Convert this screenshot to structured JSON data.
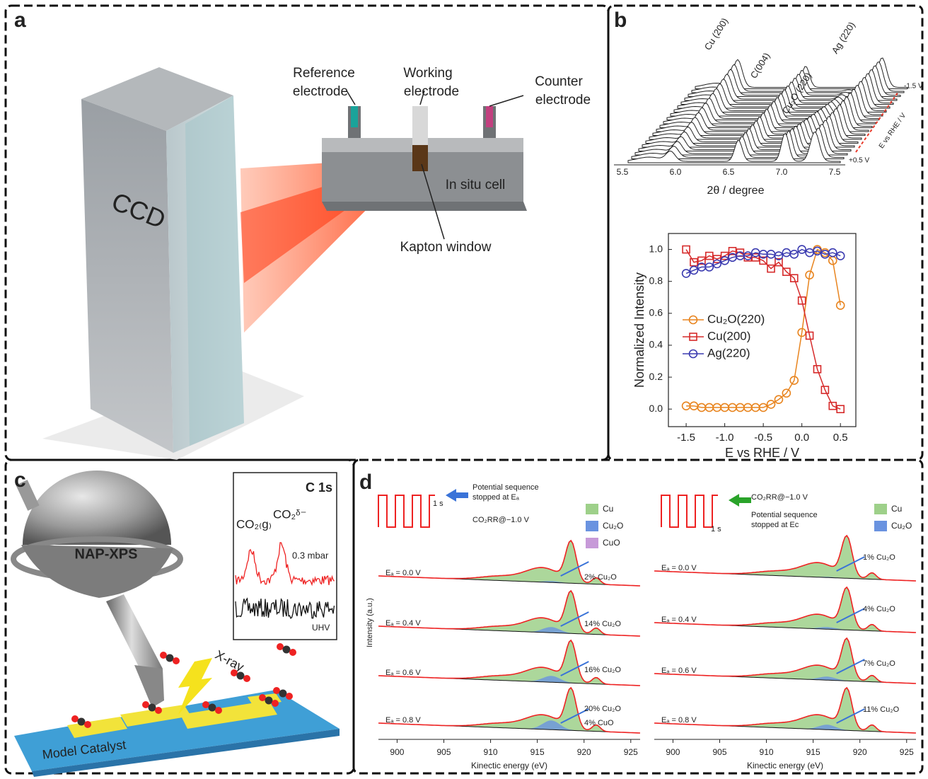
{
  "panel_a": {
    "label": "a",
    "reference": [
      "Reference",
      "electrode"
    ],
    "working": [
      "Working",
      "electrode"
    ],
    "counter": [
      "Counter",
      "electrode"
    ],
    "ccd": "CCD",
    "cell": "In situ cell",
    "window": "Kapton window"
  },
  "panel_b": {
    "label": "b",
    "xrd": {
      "xlabel": "2θ / degree",
      "xticks": [
        "5.5",
        "6.0",
        "6.5",
        "7.0",
        "7.5"
      ],
      "peaks": [
        "Cu (200)",
        "C(004)",
        "Cu₂O (220)",
        "Ag (220)"
      ],
      "potential_top": "-1.5 V",
      "potential_bottom": "+0.5 V",
      "potential_axis": "E vs RHE / V"
    }
  },
  "chart_data": {
    "type": "line",
    "xlabel": "E vs RHE / V",
    "ylabel": "Normalized Intensity",
    "x": [
      -1.5,
      -1.4,
      -1.3,
      -1.2,
      -1.1,
      -1.0,
      -0.9,
      -0.8,
      -0.7,
      -0.6,
      -0.5,
      -0.4,
      -0.3,
      -0.2,
      -0.1,
      0.0,
      0.1,
      0.2,
      0.3,
      0.4,
      0.5
    ],
    "series": [
      {
        "name": "Cu₂O(220)",
        "color": "#e8841e",
        "marker": "circle",
        "values": [
          0.02,
          0.02,
          0.01,
          0.01,
          0.01,
          0.01,
          0.01,
          0.01,
          0.01,
          0.01,
          0.01,
          0.03,
          0.06,
          0.1,
          0.18,
          0.48,
          0.84,
          1.0,
          0.98,
          0.93,
          0.65
        ]
      },
      {
        "name": "Cu(200)",
        "color": "#d62a2a",
        "marker": "square",
        "values": [
          1.0,
          0.92,
          0.93,
          0.96,
          0.94,
          0.96,
          0.99,
          0.98,
          0.95,
          0.95,
          0.93,
          0.88,
          0.92,
          0.86,
          0.82,
          0.68,
          0.46,
          0.25,
          0.12,
          0.02,
          0.0
        ]
      },
      {
        "name": "Ag(220)",
        "color": "#3b3bb0",
        "marker": "circle",
        "values": [
          0.85,
          0.87,
          0.89,
          0.89,
          0.91,
          0.93,
          0.95,
          0.96,
          0.96,
          0.98,
          0.97,
          0.97,
          0.96,
          0.98,
          0.97,
          1.0,
          0.98,
          0.99,
          0.97,
          0.98,
          0.96
        ]
      }
    ],
    "xlim": [
      -1.73,
      0.7
    ],
    "ylim": [
      -0.11,
      1.1
    ],
    "xticks": [
      -1.5,
      {
        "value": -1,
        "label": "-1.0"
      },
      -0.5,
      {
        "value": 0,
        "label": "0.0"
      },
      0.5
    ],
    "yticks": [
      {
        "value": 0,
        "label": "0.0"
      },
      0.2,
      0.4,
      0.6,
      0.8,
      {
        "value": 1,
        "label": "1.0"
      }
    ]
  },
  "panel_c": {
    "label": "c",
    "instrument": "NAP-XPS",
    "xray": "X-ray",
    "catalyst": "Model Catalyst",
    "inset": {
      "title": "C 1s",
      "peak_gas": "CO₂₍g₎",
      "peak_ads": "CO₂ᵟ⁻",
      "pressure": "0.3 mbar",
      "vacuum": "UHV"
    }
  },
  "panel_d": {
    "label": "d",
    "ylabel": "Intensity (a.u.)",
    "xlabel": "Kinectic energy (eV)",
    "xticks": [
      "900",
      "905",
      "910",
      "915",
      "920",
      "925"
    ],
    "left": {
      "period": "1 s",
      "note": [
        "Potential sequence",
        "stopped at Eₐ"
      ],
      "condition": "CO₂RR@−1.0 V",
      "legend": [
        "Cu",
        "Cu₂O",
        "CuO"
      ],
      "rows": [
        {
          "potential": "Eₐ = 0.0 V",
          "annotations": [
            "2% Cu₂O"
          ]
        },
        {
          "potential": "Eₐ = 0.4 V",
          "annotations": [
            "14% Cu₂O"
          ]
        },
        {
          "potential": "Eₐ = 0.6 V",
          "annotations": [
            "16% Cu₂O"
          ]
        },
        {
          "potential": "Eₐ = 0.8 V",
          "annotations": [
            "20% Cu₂O",
            "4% CuO"
          ]
        }
      ]
    },
    "right": {
      "period": "1 s",
      "note": [
        "Potential sequence",
        "stopped at Ec"
      ],
      "condition": "CO₂RR@−1.0 V",
      "legend": [
        "Cu",
        "Cu₂O"
      ],
      "rows": [
        {
          "potential": "Eₐ = 0.0 V",
          "annotations": [
            "1% Cu₂O"
          ]
        },
        {
          "potential": "Eₐ = 0.4 V",
          "annotations": [
            "4% Cu₂O"
          ]
        },
        {
          "potential": "Eₐ = 0.6 V",
          "annotations": [
            "7% Cu₂O"
          ]
        },
        {
          "potential": "Eₐ = 0.8 V",
          "annotations": [
            "11% Cu₂O"
          ]
        }
      ]
    }
  }
}
